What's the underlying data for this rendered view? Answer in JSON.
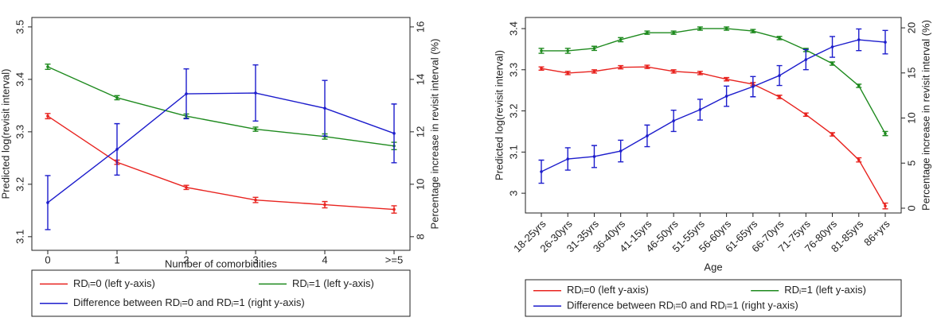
{
  "chart_data": [
    {
      "type": "line",
      "x_label": "Number of comorbidities",
      "y_label": "Predicted log(revisit interval)",
      "y2_label": "Percentage increase in revisit interval (%)",
      "categories": [
        "0",
        "1",
        "2",
        "3",
        "4",
        ">=5"
      ],
      "ylim": [
        3.074,
        3.518
      ],
      "yticks": [
        3.1,
        3.2,
        3.3,
        3.4,
        3.5
      ],
      "y2lim": [
        7.48,
        16.36
      ],
      "y2ticks": [
        8,
        10,
        12,
        14,
        16
      ],
      "series": [
        {
          "name": "RDᵢ=0 (left y-axis)",
          "color": "#e8231f",
          "axis": "y",
          "values": [
            3.33,
            3.242,
            3.194,
            3.17,
            3.161,
            3.152
          ],
          "errors": [
            0.005,
            0.004,
            0.004,
            0.005,
            0.006,
            0.007
          ]
        },
        {
          "name": "RDᵢ=1 (left y-axis)",
          "color": "#1e8a1e",
          "axis": "y",
          "values": [
            3.424,
            3.365,
            3.33,
            3.305,
            3.291,
            3.273
          ],
          "errors": [
            0.005,
            0.004,
            0.004,
            0.004,
            0.005,
            0.007
          ]
        },
        {
          "name": "Difference between RDᵢ=0 and RDᵢ=1 (right y-axis)",
          "color": "#1c1ccc",
          "axis": "y2",
          "values": [
            9.3,
            11.33,
            13.45,
            13.48,
            12.9,
            11.94
          ],
          "errors": [
            1.03,
            0.98,
            0.95,
            1.07,
            1.06,
            1.12
          ]
        }
      ]
    },
    {
      "type": "line",
      "x_label": "Age",
      "y_label": "Predicted log(revisit interval)",
      "y2_label": "Percentage increase in revisit interval (%)",
      "categories": [
        "18-25yrs",
        "26-30yrs",
        "31-35yrs",
        "36-40yrs",
        "41-15yrs",
        "46-50yrs",
        "51-55yrs",
        "56-60yrs",
        "61-65yrs",
        "66-70yrs",
        "71-75yrs",
        "76-80yrs",
        "81-85yrs",
        "86+yrs"
      ],
      "ylim": [
        2.952,
        3.427
      ],
      "yticks": [
        3,
        3.1,
        3.2,
        3.3,
        3.4
      ],
      "y2lim": [
        -0.53,
        21.15
      ],
      "y2ticks": [
        0,
        5,
        10,
        15,
        20
      ],
      "series": [
        {
          "name": "RDᵢ=0 (left y-axis)",
          "color": "#e8231f",
          "axis": "y",
          "values": [
            3.303,
            3.292,
            3.296,
            3.306,
            3.307,
            3.296,
            3.292,
            3.277,
            3.265,
            3.234,
            3.191,
            3.143,
            3.081,
            2.969
          ],
          "errors": [
            0.004,
            0.004,
            0.004,
            0.004,
            0.004,
            0.004,
            0.004,
            0.004,
            0.004,
            0.004,
            0.004,
            0.004,
            0.005,
            0.007
          ]
        },
        {
          "name": "RDᵢ=1 (left y-axis)",
          "color": "#1e8a1e",
          "axis": "y",
          "values": [
            3.346,
            3.346,
            3.352,
            3.373,
            3.39,
            3.39,
            3.4,
            3.4,
            3.394,
            3.377,
            3.348,
            3.315,
            3.261,
            3.145
          ],
          "errors": [
            0.006,
            0.006,
            0.005,
            0.005,
            0.004,
            0.004,
            0.004,
            0.004,
            0.004,
            0.004,
            0.004,
            0.004,
            0.004,
            0.005
          ]
        },
        {
          "name": "Difference between RDᵢ=0 and RDᵢ=1 (right y-axis)",
          "color": "#1c1ccc",
          "axis": "y2",
          "values": [
            4.05,
            5.46,
            5.73,
            6.34,
            8.02,
            9.69,
            10.93,
            12.42,
            13.48,
            14.71,
            16.48,
            17.89,
            18.68,
            18.41
          ],
          "errors": [
            1.28,
            1.24,
            1.22,
            1.2,
            1.2,
            1.18,
            1.15,
            1.12,
            1.12,
            1.1,
            1.12,
            1.15,
            1.2,
            1.3
          ]
        }
      ]
    }
  ]
}
